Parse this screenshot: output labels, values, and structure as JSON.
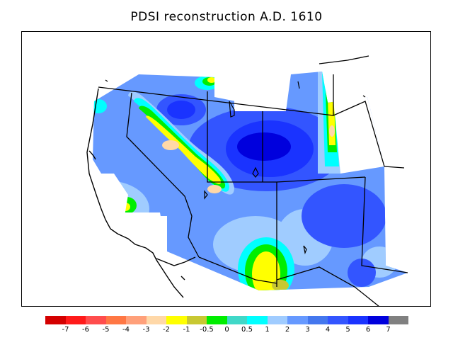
{
  "title": "PDSI reconstruction A.D. 1610",
  "legend": {
    "colors": [
      "#d40000",
      "#ff1a1a",
      "#ff4d4d",
      "#ff7744",
      "#ffa07a",
      "#ffd8a8",
      "#ffff00",
      "#c8c832",
      "#00ee00",
      "#40d8c8",
      "#00ffff",
      "#a0ccff",
      "#6699ff",
      "#4477ee",
      "#3355ff",
      "#1a33ff",
      "#0000dd",
      "#808080"
    ],
    "ticks": [
      "-7",
      "-6",
      "-5",
      "-4",
      "-3",
      "-2",
      "-1",
      "-0.5",
      "0",
      "0.5",
      "1",
      "2",
      "3",
      "4",
      "5",
      "6",
      "7"
    ]
  },
  "colors": {
    "very_wet": "#0000dd",
    "wet": "#3355ff",
    "moderately_wet": "#6699ff",
    "slightly_wet": "#a0ccff",
    "near_normal_wet": "#00ffff",
    "incipient": "#40d8c8",
    "normal": "#00ee00",
    "slightly_dry": "#c8c832",
    "dry": "#ffff00",
    "moderately_dry": "#ffd8a8"
  }
}
